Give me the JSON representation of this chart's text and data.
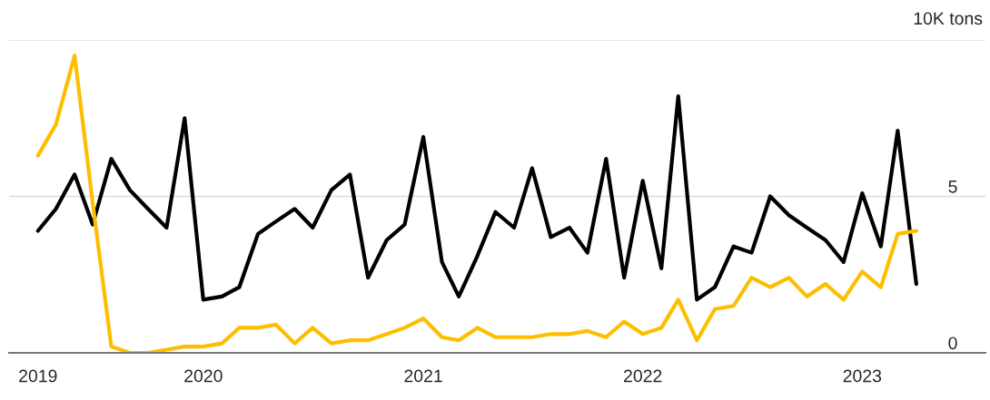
{
  "chart_data": {
    "type": "line",
    "ylabel": "10K tons",
    "x": [
      "2019-04",
      "2019-05",
      "2019-06",
      "2019-07",
      "2019-08",
      "2019-09",
      "2019-10",
      "2019-11",
      "2019-12",
      "2020-01",
      "2020-02",
      "2020-03",
      "2020-04",
      "2020-05",
      "2020-06",
      "2020-07",
      "2020-08",
      "2020-09",
      "2020-10",
      "2020-11",
      "2020-12",
      "2021-01",
      "2021-02",
      "2021-03",
      "2021-04",
      "2021-05",
      "2021-06",
      "2021-07",
      "2021-08",
      "2021-09",
      "2021-10",
      "2021-11",
      "2021-12",
      "2022-01",
      "2022-02",
      "2022-03",
      "2022-04",
      "2022-05",
      "2022-06",
      "2022-07",
      "2022-08",
      "2022-09",
      "2022-10",
      "2022-11",
      "2022-12",
      "2023-01",
      "2023-02",
      "2023-03",
      "2023-04"
    ],
    "series": [
      {
        "color": "#000000",
        "values": [
          3.9,
          4.6,
          5.7,
          4.1,
          6.2,
          5.2,
          4.6,
          4.0,
          7.5,
          1.7,
          1.8,
          2.1,
          3.8,
          4.2,
          4.6,
          4.0,
          5.2,
          5.7,
          2.4,
          3.6,
          4.1,
          6.9,
          2.9,
          1.8,
          3.1,
          4.5,
          4.0,
          5.9,
          3.7,
          4.0,
          3.2,
          6.2,
          2.4,
          5.5,
          2.7,
          8.2,
          1.7,
          2.1,
          3.4,
          3.2,
          5.0,
          4.4,
          4.0,
          3.6,
          2.9,
          5.1,
          3.4,
          7.1,
          2.2
        ]
      },
      {
        "color": "#fcbf00",
        "values": [
          6.3,
          7.3,
          9.5,
          4.8,
          0.2,
          0.0,
          0.0,
          0.1,
          0.2,
          0.2,
          0.3,
          0.8,
          0.8,
          0.9,
          0.3,
          0.8,
          0.3,
          0.4,
          0.4,
          0.6,
          0.8,
          1.1,
          0.5,
          0.4,
          0.8,
          0.5,
          0.5,
          0.5,
          0.6,
          0.6,
          0.7,
          0.5,
          1.0,
          0.6,
          0.8,
          1.7,
          0.4,
          1.4,
          1.5,
          2.4,
          2.1,
          2.4,
          1.8,
          2.2,
          1.7,
          2.6,
          2.1,
          3.8,
          3.9
        ]
      }
    ],
    "xlim": [
      "2019-02-12",
      "2023-07-25"
    ],
    "xticks": [
      {
        "value": "2019-04",
        "label": "2019"
      },
      {
        "value": "2020-01",
        "label": "2020"
      },
      {
        "value": "2021-01",
        "label": "2021"
      },
      {
        "value": "2022-01",
        "label": "2022"
      },
      {
        "value": "2023-01",
        "label": "2023"
      }
    ],
    "ylim": [
      0,
      10
    ],
    "yticks": [
      0,
      5,
      {
        "value": 10,
        "label": null
      }
    ],
    "grid": "y",
    "line_style": "solid",
    "marker": "none",
    "legend": false
  }
}
